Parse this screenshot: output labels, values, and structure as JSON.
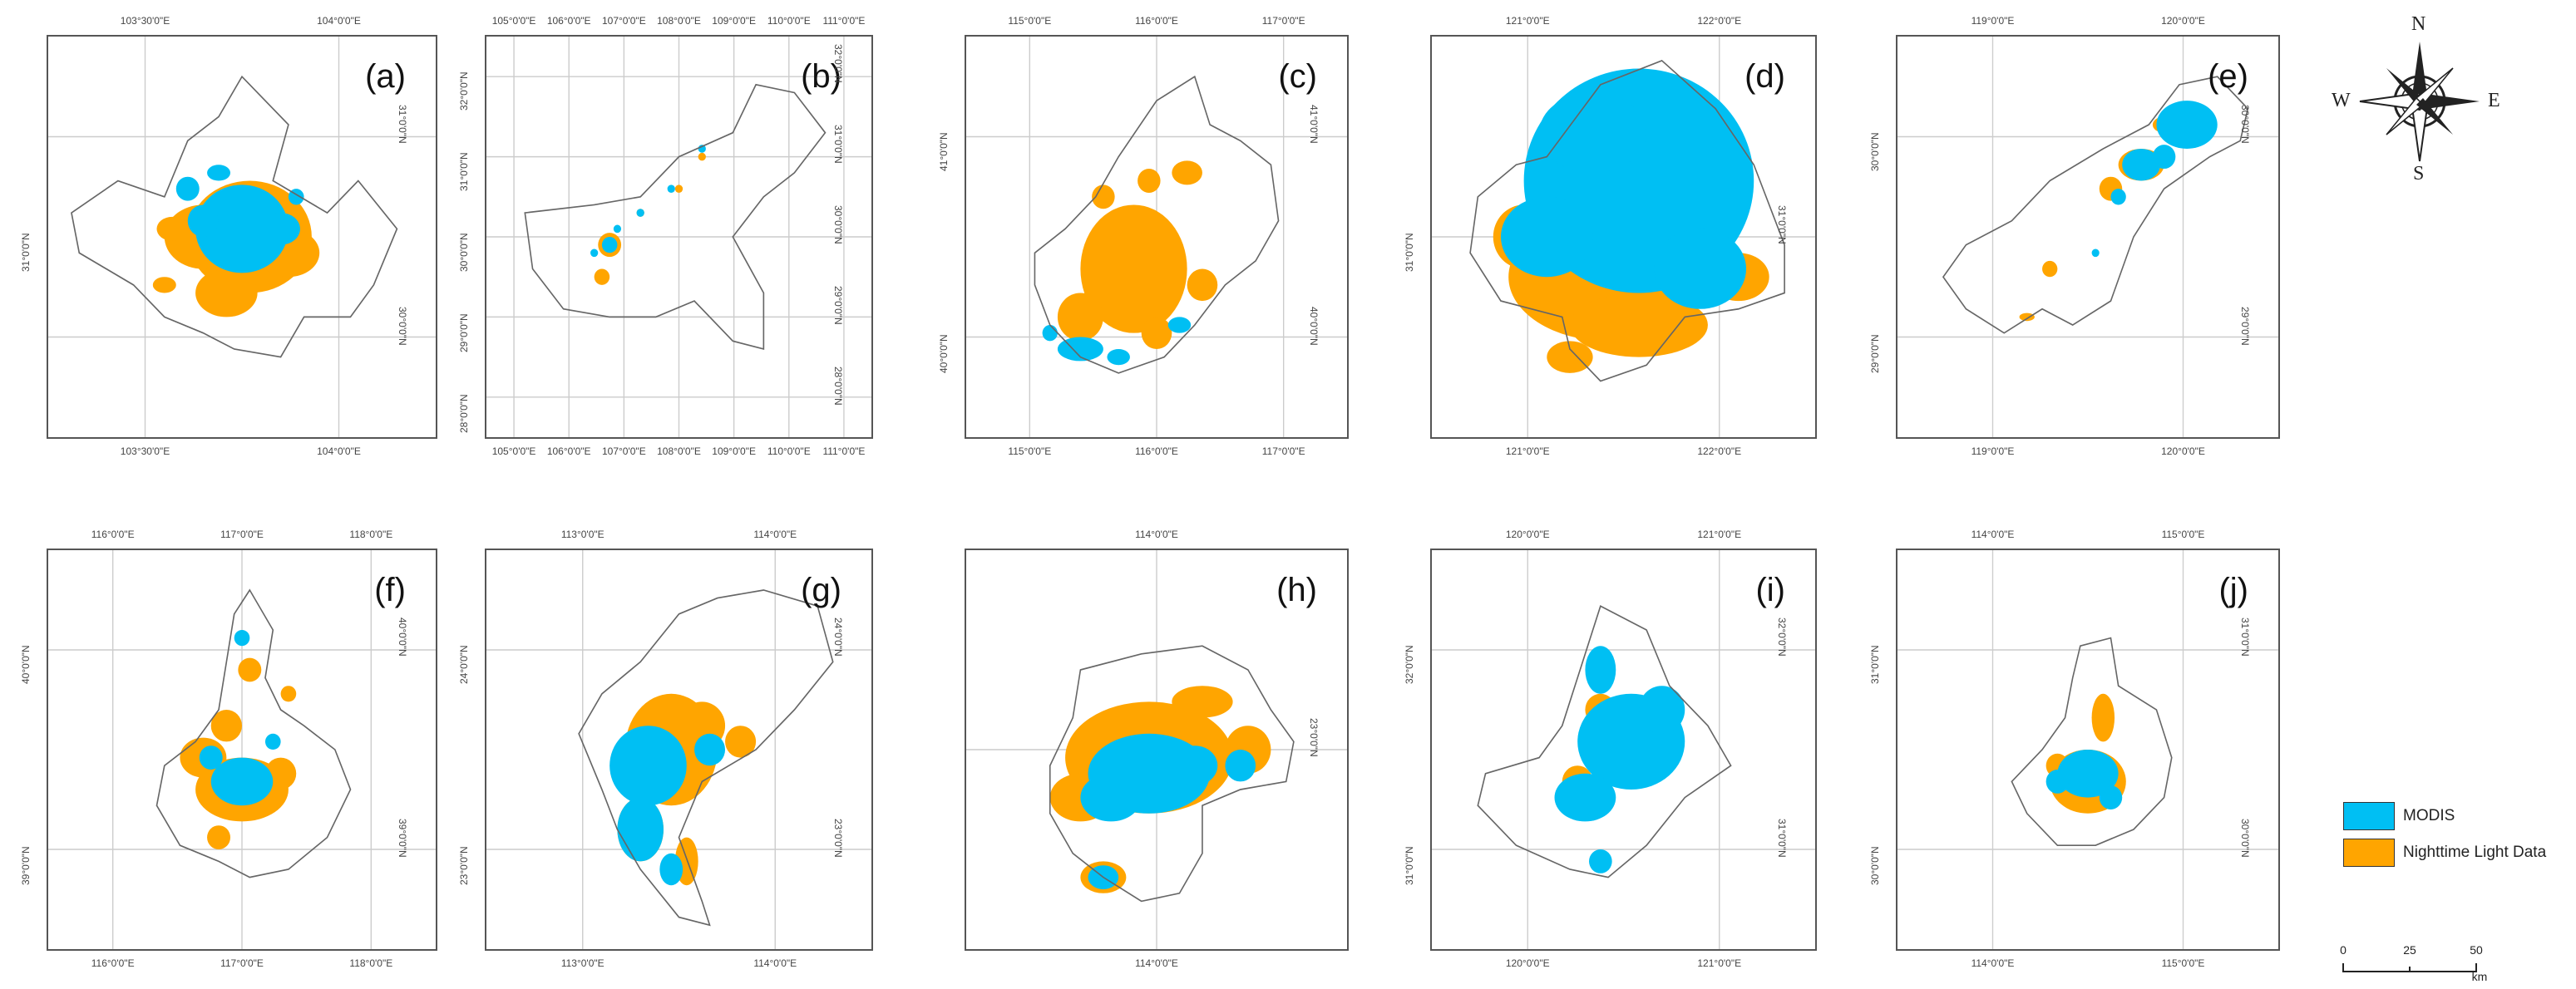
{
  "panels": [
    {
      "label": "(a)",
      "top": [
        "103°30'0\"E",
        "104°0'0\"E"
      ],
      "bottom": [
        "103°30'0\"E",
        "104°0'0\"E"
      ],
      "left": [
        "31°0'0\"N"
      ],
      "right": [
        "31°0'0\"N",
        "30°0'0\"N"
      ]
    },
    {
      "label": "(b)",
      "top": [
        "105°0'0\"E",
        "106°0'0\"E",
        "107°0'0\"E",
        "108°0'0\"E",
        "109°0'0\"E",
        "110°0'0\"E",
        "111°0'0\"E"
      ],
      "bottom": [
        "105°0'0\"E",
        "106°0'0\"E",
        "107°0'0\"E",
        "108°0'0\"E",
        "109°0'0\"E",
        "110°0'0\"E",
        "111°0'0\"E"
      ],
      "left": [
        "32°0'0\"N",
        "31°0'0\"N",
        "30°0'0\"N",
        "29°0'0\"N",
        "28°0'0\"N"
      ],
      "right": [
        "32°0'0\"N",
        "31°0'0\"N",
        "30°0'0\"N",
        "29°0'0\"N",
        "28°0'0\"N"
      ]
    },
    {
      "label": "(c)",
      "top": [
        "115°0'0\"E",
        "116°0'0\"E",
        "117°0'0\"E"
      ],
      "bottom": [
        "115°0'0\"E",
        "116°0'0\"E",
        "117°0'0\"E"
      ],
      "left": [
        "41°0'0\"N",
        "40°0'0\"N"
      ],
      "right": [
        "41°0'0\"N",
        "40°0'0\"N"
      ]
    },
    {
      "label": "(d)",
      "top": [
        "121°0'0\"E",
        "122°0'0\"E"
      ],
      "bottom": [
        "121°0'0\"E",
        "122°0'0\"E"
      ],
      "left": [
        "31°0'0\"N"
      ],
      "right": [
        "31°0'0\"N"
      ]
    },
    {
      "label": "(e)",
      "top": [
        "119°0'0\"E",
        "120°0'0\"E"
      ],
      "bottom": [
        "119°0'0\"E",
        "120°0'0\"E"
      ],
      "left": [
        "30°0'0\"N",
        "29°0'0\"N"
      ],
      "right": [
        "30°0'0\"N",
        "29°0'0\"N"
      ]
    },
    {
      "label": "(f)",
      "top": [
        "116°0'0\"E",
        "117°0'0\"E",
        "118°0'0\"E"
      ],
      "bottom": [
        "116°0'0\"E",
        "117°0'0\"E",
        "118°0'0\"E"
      ],
      "left": [
        "40°0'0\"N",
        "39°0'0\"N"
      ],
      "right": [
        "40°0'0\"N",
        "39°0'0\"N"
      ]
    },
    {
      "label": "(g)",
      "top": [
        "113°0'0\"E",
        "114°0'0\"E"
      ],
      "bottom": [
        "113°0'0\"E",
        "114°0'0\"E"
      ],
      "left": [
        "24°0'0\"N",
        "23°0'0\"N"
      ],
      "right": [
        "24°0'0\"N",
        "23°0'0\"N"
      ]
    },
    {
      "label": "(h)",
      "top": [
        "114°0'0\"E"
      ],
      "bottom": [
        "114°0'0\"E"
      ],
      "left": [],
      "right": [
        "23°0'0\"N"
      ]
    },
    {
      "label": "(i)",
      "top": [
        "120°0'0\"E",
        "121°0'0\"E"
      ],
      "bottom": [
        "120°0'0\"E",
        "121°0'0\"E"
      ],
      "left": [
        "32°0'0\"N",
        "31°0'0\"N"
      ],
      "right": [
        "32°0'0\"N",
        "31°0'0\"N"
      ]
    },
    {
      "label": "(j)",
      "top": [
        "114°0'0\"E",
        "115°0'0\"E"
      ],
      "bottom": [
        "114°0'0\"E",
        "115°0'0\"E"
      ],
      "left": [
        "31°0'0\"N",
        "30°0'0\"N"
      ],
      "right": [
        "31°0'0\"N",
        "30°0'0\"N"
      ]
    }
  ],
  "compass": {
    "n": "N",
    "s": "S",
    "e": "E",
    "w": "W"
  },
  "legend": {
    "items": [
      {
        "label": "MODIS",
        "color": "#00BFF3"
      },
      {
        "label": "Nighttime Light Data",
        "color": "#FFA500"
      }
    ]
  },
  "scale": {
    "labels": [
      "0",
      "25",
      "50"
    ],
    "unit": "km"
  },
  "colors": {
    "modis": "#00BFF3",
    "ntl": "#FFA500",
    "grid": "#cccccc",
    "outline": "#666666"
  }
}
